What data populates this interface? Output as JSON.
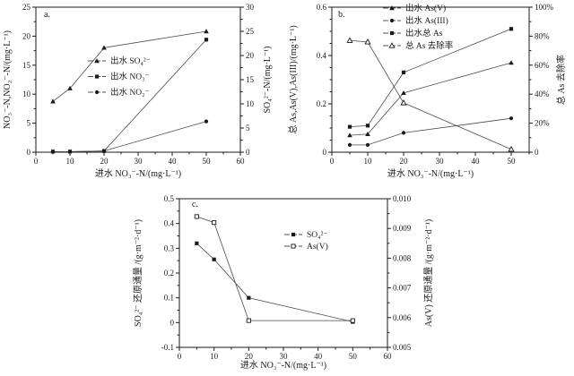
{
  "figure": {
    "background": "#ffffff",
    "ink_color": "#1a1a1a",
    "series_line_color": "#4a4a4a"
  },
  "chart_data": [
    {
      "id": "a",
      "type": "line",
      "panel_label": "a.",
      "x_axis": {
        "label": "进水 NO₃⁻-N/(mg·L⁻¹)",
        "min": 0,
        "max": 60,
        "minor_step": 5,
        "ticks": [
          {
            "v": 0,
            "t": "0"
          },
          {
            "v": 10,
            "t": "10"
          },
          {
            "v": 20,
            "t": "20"
          },
          {
            "v": 30,
            "t": "30"
          },
          {
            "v": 40,
            "t": "40"
          },
          {
            "v": 50,
            "t": "50"
          },
          {
            "v": 60,
            "t": "60"
          }
        ]
      },
      "y_left": {
        "label": "NO₃⁻-N,NO₂⁻-N/(mg·L⁻¹)",
        "min": 0,
        "max": 25,
        "minor_step": 2.5,
        "ticks": [
          {
            "v": 0,
            "t": "0"
          },
          {
            "v": 5,
            "t": "5"
          },
          {
            "v": 10,
            "t": "10"
          },
          {
            "v": 15,
            "t": "15"
          },
          {
            "v": 20,
            "t": "20"
          },
          {
            "v": 25,
            "t": "25"
          }
        ]
      },
      "y_right": {
        "label": "SO₄²⁻-N/(mg·L⁻¹)",
        "min": 0,
        "max": 30,
        "minor_step": 2.5,
        "ticks": [
          {
            "v": 0,
            "t": "0"
          },
          {
            "v": 5,
            "t": "5"
          },
          {
            "v": 10,
            "t": "10"
          },
          {
            "v": 15,
            "t": "15"
          },
          {
            "v": 20,
            "t": "20"
          },
          {
            "v": 25,
            "t": "25"
          },
          {
            "v": 30,
            "t": "30"
          }
        ]
      },
      "x": [
        5,
        10,
        20,
        50
      ],
      "series": [
        {
          "name": "出水 SO₄²⁻",
          "marker": "triangle-filled",
          "axis": "right",
          "values": [
            10.5,
            13.2,
            21.6,
            25.0
          ]
        },
        {
          "name": "出水 NO₃⁻",
          "marker": "square-filled",
          "axis": "left",
          "values": [
            0.1,
            0.1,
            0.2,
            19.4
          ]
        },
        {
          "name": "出水 NO₂⁻",
          "marker": "circle-filled",
          "axis": "left",
          "values": [
            0.1,
            0.1,
            0.2,
            5.3
          ]
        }
      ],
      "legend_position": "inside-left-middle"
    },
    {
      "id": "b",
      "type": "line",
      "panel_label": "b.",
      "x_axis": {
        "label": "进水 NO₃⁻-N/(mg·L⁻¹)",
        "min": 0,
        "max": 55,
        "minor_step": 5,
        "ticks": [
          {
            "v": 0,
            "t": "0"
          },
          {
            "v": 10,
            "t": "10"
          },
          {
            "v": 20,
            "t": "20"
          },
          {
            "v": 30,
            "t": "30"
          },
          {
            "v": 40,
            "t": "40"
          },
          {
            "v": 50,
            "t": "50"
          }
        ]
      },
      "y_left": {
        "label": "总 As,As(V),As(III)/(mg·L⁻¹)",
        "min": 0,
        "max": 0.6,
        "minor_step": 0.05,
        "ticks": [
          {
            "v": 0,
            "t": "0"
          },
          {
            "v": 0.2,
            "t": "0.2"
          },
          {
            "v": 0.4,
            "t": "0.4"
          },
          {
            "v": 0.6,
            "t": "0.6"
          }
        ]
      },
      "y_right": {
        "label": "总 As 去除率",
        "min": 0,
        "max": 100,
        "minor_step": 10,
        "ticks": [
          {
            "v": 0,
            "t": "0"
          },
          {
            "v": 20,
            "t": "20%"
          },
          {
            "v": 40,
            "t": "40%"
          },
          {
            "v": 60,
            "t": "60%"
          },
          {
            "v": 80,
            "t": "80%"
          },
          {
            "v": 100,
            "t": "100%"
          }
        ]
      },
      "x": [
        5,
        10,
        20,
        50
      ],
      "series": [
        {
          "name": "出水 As(V)",
          "marker": "triangle-filled",
          "axis": "left",
          "values": [
            0.07,
            0.075,
            0.245,
            0.37
          ]
        },
        {
          "name": "出水 As(III)",
          "marker": "circle-filled",
          "axis": "left",
          "values": [
            0.03,
            0.03,
            0.08,
            0.14
          ]
        },
        {
          "name": "出水总 As",
          "marker": "square-filled",
          "axis": "left",
          "values": [
            0.105,
            0.11,
            0.33,
            0.51
          ]
        },
        {
          "name": "总 As 去除率",
          "marker": "triangle-open",
          "axis": "right",
          "values": [
            77,
            76,
            34,
            2
          ]
        }
      ],
      "legend_position": "inside-top-center"
    },
    {
      "id": "c",
      "type": "line",
      "panel_label": "c.",
      "x_axis": {
        "label": "进水 NO₃⁻-N/(mg·L⁻¹)",
        "min": 0,
        "max": 60,
        "minor_step": 5,
        "ticks": [
          {
            "v": 0,
            "t": "0"
          },
          {
            "v": 10,
            "t": "10"
          },
          {
            "v": 20,
            "t": "20"
          },
          {
            "v": 30,
            "t": "30"
          },
          {
            "v": 40,
            "t": "40"
          },
          {
            "v": 50,
            "t": "50"
          },
          {
            "v": 60,
            "t": "60"
          }
        ]
      },
      "y_left": {
        "label": "SO₄²⁻ 还原通量 /(g·m⁻²·d⁻¹)",
        "min": -0.1,
        "max": 0.5,
        "minor_step": 0.05,
        "ticks": [
          {
            "v": -0.1,
            "t": "-0.1"
          },
          {
            "v": 0,
            "t": "0"
          },
          {
            "v": 0.1,
            "t": "0.1"
          },
          {
            "v": 0.2,
            "t": "0.2"
          },
          {
            "v": 0.3,
            "t": "0.3"
          },
          {
            "v": 0.4,
            "t": "0.4"
          },
          {
            "v": 0.5,
            "t": "0.5"
          }
        ]
      },
      "y_right": {
        "label": "As(V) 还原通量 /(g·m⁻²·d⁻¹)",
        "min": 0.005,
        "max": 0.01,
        "minor_step": 0.0005,
        "ticks": [
          {
            "v": 0.005,
            "t": "0.005"
          },
          {
            "v": 0.006,
            "t": "0.006"
          },
          {
            "v": 0.007,
            "t": "0.007"
          },
          {
            "v": 0.008,
            "t": "0.008"
          },
          {
            "v": 0.009,
            "t": "0.009"
          },
          {
            "v": 0.01,
            "t": "0.010"
          }
        ]
      },
      "x": [
        5,
        10,
        20,
        50
      ],
      "series": [
        {
          "name": "SO₄²⁻",
          "marker": "square-filled",
          "axis": "left",
          "values": [
            0.32,
            0.255,
            0.1,
            0.003
          ]
        },
        {
          "name": "As(V)",
          "marker": "square-open",
          "axis": "right",
          "values": [
            0.0094,
            0.0092,
            0.0059,
            0.0059
          ]
        }
      ],
      "legend_position": "inside-middle-right"
    }
  ]
}
